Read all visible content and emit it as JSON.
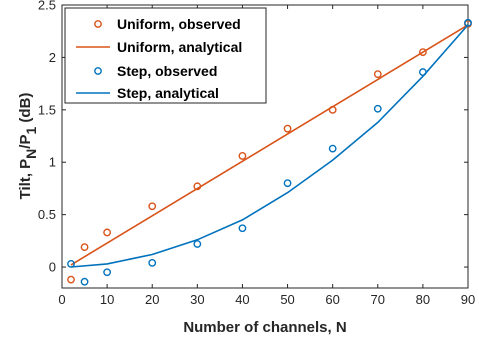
{
  "chart_data": {
    "type": "line",
    "xlabel": "Number of channels, N",
    "ylabel_parts": [
      "Tilt, P",
      "N",
      "/P",
      "1",
      " (dB)"
    ],
    "xlim": [
      0,
      90
    ],
    "ylim": [
      -0.2,
      2.5
    ],
    "xticks": [
      0,
      10,
      20,
      30,
      40,
      50,
      60,
      70,
      80,
      90
    ],
    "yticks": [
      0,
      0.5,
      1,
      1.5,
      2,
      2.5
    ],
    "ytick_labels": [
      "0",
      "0.5",
      "1",
      "1.5",
      "2",
      "2.5"
    ],
    "grid": false,
    "legend_position": "top-left",
    "series": [
      {
        "name": "Uniform, observed",
        "style": "markers",
        "color": "#D95319",
        "x": [
          2,
          5,
          10,
          20,
          30,
          40,
          50,
          60,
          70,
          80,
          90
        ],
        "y": [
          -0.12,
          0.19,
          0.33,
          0.58,
          0.77,
          1.06,
          1.32,
          1.5,
          1.84,
          2.05,
          2.32
        ]
      },
      {
        "name": "Uniform, analytical",
        "style": "line",
        "color": "#D95319",
        "x": [
          2,
          90
        ],
        "y": [
          0.02,
          2.31
        ]
      },
      {
        "name": "Step, observed",
        "style": "markers",
        "color": "#0072BD",
        "x": [
          2,
          5,
          10,
          20,
          30,
          40,
          50,
          60,
          70,
          80,
          90
        ],
        "y": [
          0.03,
          -0.14,
          -0.05,
          0.04,
          0.22,
          0.37,
          0.8,
          1.13,
          1.51,
          1.86,
          2.33
        ]
      },
      {
        "name": "Step, analytical",
        "style": "line",
        "color": "#0072BD",
        "x": [
          2,
          10,
          20,
          30,
          40,
          50,
          60,
          70,
          80,
          90
        ],
        "y": [
          0.0,
          0.03,
          0.12,
          0.26,
          0.45,
          0.71,
          1.02,
          1.38,
          1.82,
          2.31
        ]
      }
    ]
  }
}
